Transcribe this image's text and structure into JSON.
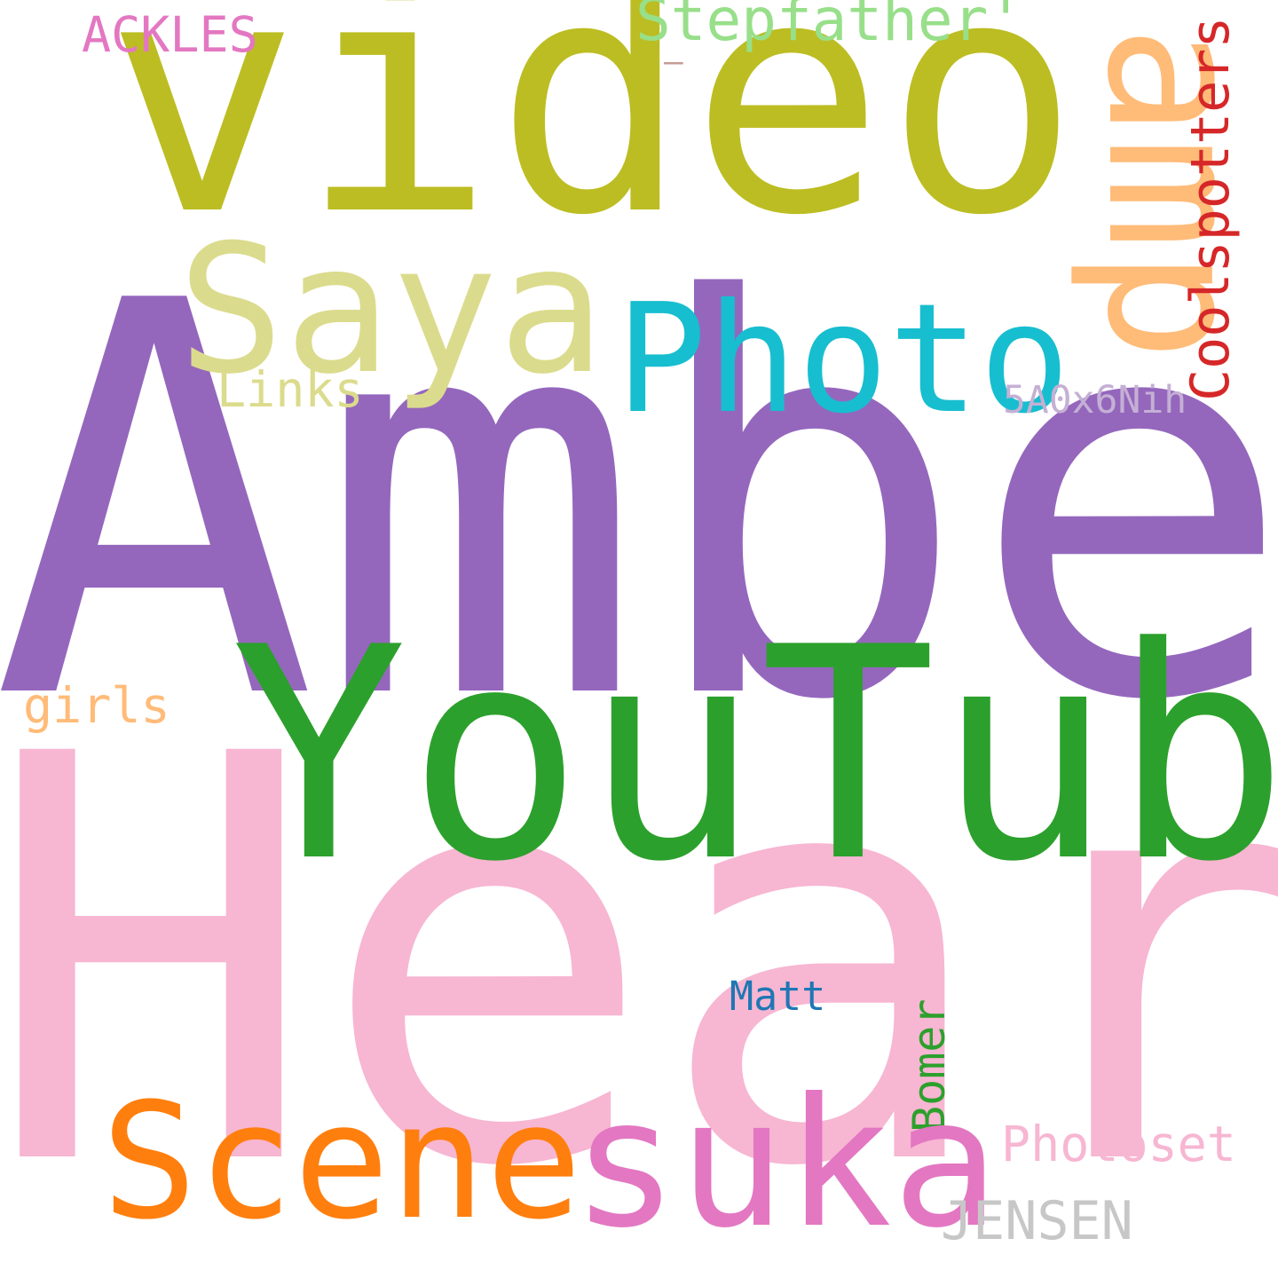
{
  "words": {
    "video": {
      "text": "video",
      "color": "#bcbd22"
    },
    "amp": {
      "text": "amp",
      "color": "#ffbb78"
    },
    "stepfather": {
      "text": "Stepfather'",
      "color": "#98df8a"
    },
    "ackles": {
      "text": "ACKLES",
      "color": "#e377c2"
    },
    "dash": {
      "text": "—",
      "color": "#c49c94"
    },
    "saya": {
      "text": "Saya",
      "color": "#dbdb8d"
    },
    "photo": {
      "text": "Photo",
      "color": "#17becf"
    },
    "coolspotters": {
      "text": "Coolspotters",
      "color": "#d62728"
    },
    "links": {
      "text": "Links",
      "color": "#dbdb8d"
    },
    "code": {
      "text": "5A0x6Nih",
      "color": "#c5b0d5"
    },
    "amber": {
      "text": "Amber",
      "color": "#9467bd"
    },
    "girls": {
      "text": "girls",
      "color": "#ffbb78"
    },
    "youtube": {
      "text": "YouTube",
      "color": "#2ca02c"
    },
    "heard": {
      "text": "Heard",
      "color": "#f7b6d2"
    },
    "matt": {
      "text": "Matt",
      "color": "#1f77b4"
    },
    "bomer": {
      "text": "Bomer",
      "color": "#2ca02c"
    },
    "photoset": {
      "text": "Photoset",
      "color": "#f7b6d2"
    },
    "scene": {
      "text": "Scene",
      "color": "#ff7f0e"
    },
    "suka": {
      "text": "suka",
      "color": "#e377c2"
    },
    "jensen": {
      "text": "JENSEN",
      "color": "#c7c7c7"
    }
  }
}
